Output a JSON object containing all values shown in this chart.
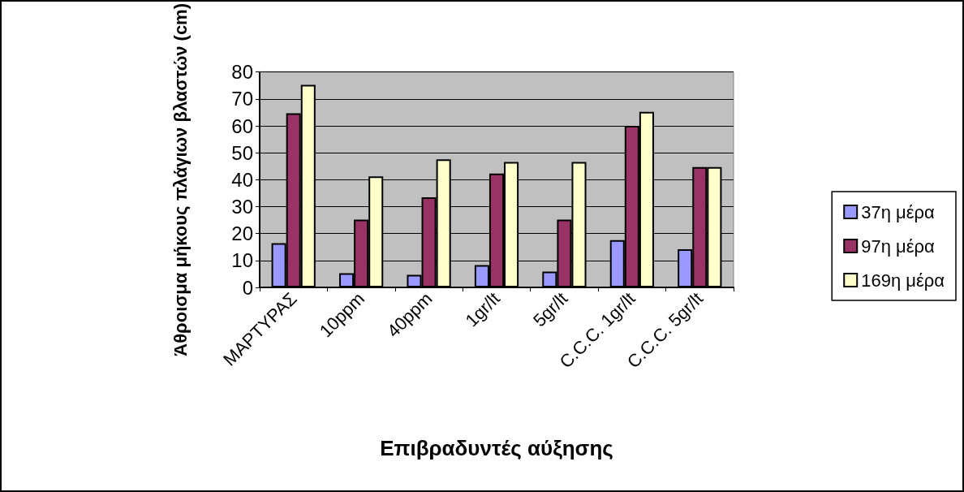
{
  "chart_data": {
    "type": "bar",
    "xlabel": "Επιβραδυντές αύξησης",
    "ylabel": "Άθροισμα μήκους πλάγιων βλαστών (cm)",
    "categories": [
      "ΜΑΡΤΥΡΑΣ",
      "10ppm",
      "40ppm",
      "1gr/lt",
      "5gr/lt",
      "C.C.C. 1gr/lt",
      "C.C.C. 5gr/lt"
    ],
    "series": [
      {
        "name": "37η μέρα",
        "color": "#9999ff",
        "values": [
          16.4,
          5.3,
          4.7,
          8.3,
          5.9,
          17.6,
          14.2
        ]
      },
      {
        "name": "97η μέρα",
        "color": "#993366",
        "values": [
          64.7,
          25.2,
          33.5,
          42.3,
          25.2,
          60,
          44.7
        ]
      },
      {
        "name": "169η μέρα",
        "color": "#ffffcc",
        "values": [
          75.2,
          41.2,
          47.6,
          46.6,
          46.6,
          65.2,
          44.7
        ]
      }
    ],
    "ylim": [
      0,
      80
    ],
    "yticks": [
      0,
      10,
      20,
      30,
      40,
      50,
      60,
      70,
      80
    ],
    "grid": "y",
    "legend": "right"
  }
}
